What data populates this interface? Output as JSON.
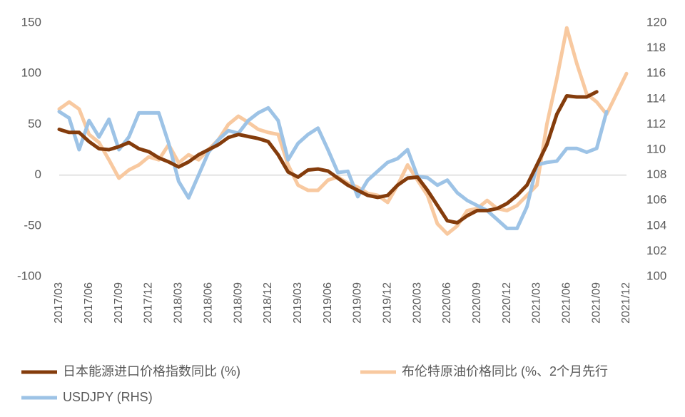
{
  "chart_data": {
    "type": "line",
    "categories": [
      "2017/03",
      null,
      null,
      "2017/06",
      null,
      null,
      "2017/09",
      null,
      null,
      "2017/12",
      null,
      null,
      "2018/03",
      null,
      null,
      "2018/06",
      null,
      null,
      "2018/09",
      null,
      null,
      "2018/12",
      null,
      null,
      "2019/03",
      null,
      null,
      "2019/06",
      null,
      null,
      "2019/09",
      null,
      null,
      "2019/12",
      null,
      null,
      "2020/03",
      null,
      null,
      "2020/06",
      null,
      null,
      "2020/09",
      null,
      null,
      "2020/12",
      null,
      null,
      "2021/03",
      null,
      null,
      "2021/06",
      null,
      null,
      "2021/09",
      null,
      null,
      "2021/12"
    ],
    "series": [
      {
        "name": "日本能源进口价格指数同比 (%)",
        "color": "#843c0c",
        "values": [
          45,
          42,
          42,
          33,
          26,
          25,
          28,
          32,
          26,
          23,
          17,
          13,
          8,
          13,
          20,
          25,
          30,
          37,
          40,
          38,
          36,
          33,
          20,
          3,
          -2,
          5,
          6,
          4,
          -3,
          -10,
          -15,
          -20,
          -22,
          -20,
          -10,
          -3,
          -2,
          -15,
          -30,
          -45,
          -47,
          -40,
          -35,
          -35,
          -33,
          -28,
          -20,
          -10,
          10,
          30,
          60,
          78,
          77,
          77,
          82,
          null,
          null,
          null
        ]
      },
      {
        "name": "布伦特原油价格同比 (%、2个月先行",
        "color": "#f8c9a0",
        "values": [
          65,
          72,
          65,
          40,
          32,
          15,
          -3,
          5,
          10,
          18,
          15,
          30,
          12,
          20,
          15,
          25,
          35,
          50,
          58,
          52,
          45,
          42,
          40,
          10,
          -10,
          -15,
          -15,
          -5,
          -2,
          -8,
          -12,
          -18,
          -20,
          -27,
          -10,
          10,
          -5,
          -20,
          -48,
          -58,
          -50,
          -35,
          -33,
          -25,
          -33,
          -35,
          -30,
          -20,
          -10,
          50,
          95,
          145,
          110,
          80,
          72,
          60,
          80,
          100
        ]
      },
      {
        "name": "USDJPY (RHS)",
        "color": "#9dc3e6",
        "axis": "y2",
        "values": [
          113,
          112.5,
          110,
          112.3,
          111,
          112.4,
          110,
          111,
          112.9,
          112.9,
          112.9,
          110.5,
          107.5,
          106.2,
          108,
          109.8,
          110.8,
          111.5,
          111.3,
          112.3,
          112.9,
          113.3,
          112.3,
          109.2,
          110.5,
          111.2,
          111.7,
          110,
          108.2,
          108.3,
          106.3,
          107.6,
          108.3,
          109,
          109.3,
          110,
          107.9,
          107.8,
          107.2,
          107.6,
          106.6,
          106,
          105.6,
          105.2,
          104.5,
          103.8,
          103.8,
          105.5,
          108.8,
          109,
          109.1,
          110.1,
          110.1,
          109.8,
          110.1,
          113,
          null,
          null
        ]
      }
    ],
    "ylim": [
      -100,
      150
    ],
    "yticks": [
      -100,
      -50,
      0,
      50,
      100,
      150
    ],
    "y2lim": [
      100,
      120
    ],
    "y2ticks": [
      100,
      102,
      104,
      106,
      108,
      110,
      112,
      114,
      116,
      118,
      120
    ]
  }
}
